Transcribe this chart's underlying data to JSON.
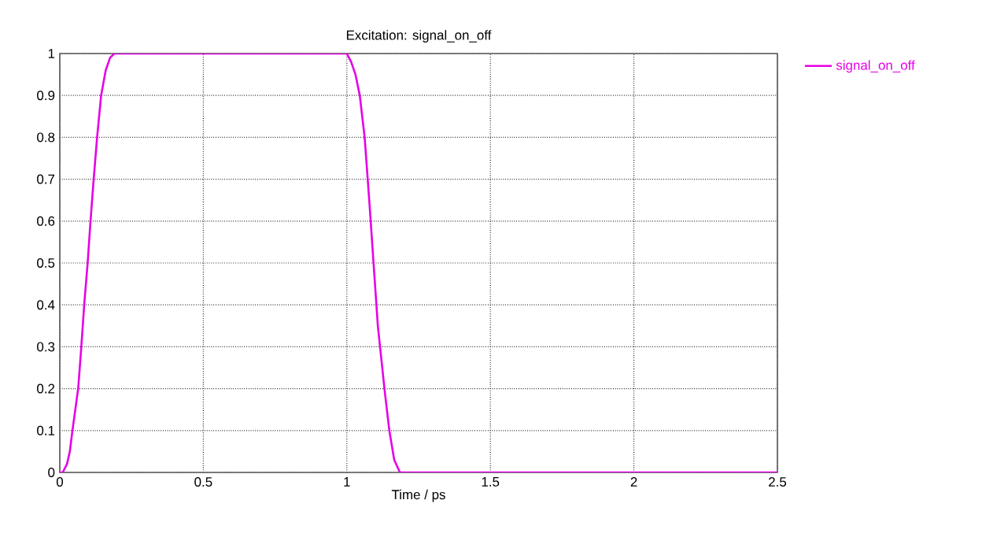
{
  "chart_data": {
    "type": "line",
    "title": "Excitation: signal_on_off",
    "xlabel": "Time / ps",
    "xlim": [
      0,
      2.5
    ],
    "ylim": [
      0,
      1
    ],
    "xticks": [
      0,
      0.5,
      1,
      1.5,
      2,
      2.5
    ],
    "yticks": [
      0,
      0.1,
      0.2,
      0.3,
      0.4,
      0.5,
      0.6,
      0.7,
      0.8,
      0.9,
      1
    ],
    "grid": true,
    "legend": "top right",
    "marker": "none",
    "line_style": "solid",
    "x": [
      0,
      0.01,
      0.025,
      0.035,
      0.044,
      0.064,
      0.075,
      0.085,
      0.097,
      0.107,
      0.118,
      0.13,
      0.144,
      0.16,
      0.175,
      0.19,
      1.0,
      1.015,
      1.03,
      1.045,
      1.062,
      1.078,
      1.093,
      1.108,
      1.131,
      1.148,
      1.165,
      1.185,
      2.5
    ],
    "series": [
      {
        "name": "signal_on_off",
        "color": "#e600e6",
        "values": [
          0,
          0,
          0.02,
          0.05,
          0.1,
          0.2,
          0.3,
          0.4,
          0.5,
          0.6,
          0.7,
          0.8,
          0.9,
          0.96,
          0.99,
          1,
          1,
          0.98,
          0.95,
          0.9,
          0.8,
          0.65,
          0.5,
          0.35,
          0.2,
          0.1,
          0.03,
          0,
          0
        ]
      }
    ]
  }
}
